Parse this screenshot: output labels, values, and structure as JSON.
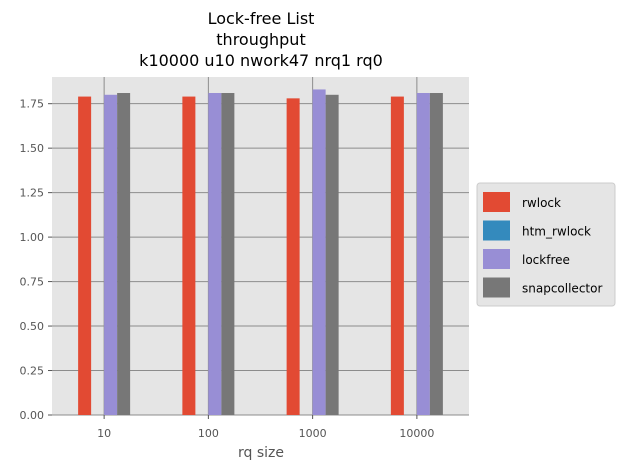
{
  "chart_data": {
    "type": "bar",
    "title": [
      "Lock-free List",
      "throughput",
      "k10000 u10 nwork47 nrq1 rq0"
    ],
    "xlabel": "rq size",
    "ylabel": "",
    "categories": [
      "10",
      "100",
      "1000",
      "10000"
    ],
    "ylim": [
      0,
      1.9
    ],
    "yticks": [
      "0.00",
      "0.25",
      "0.50",
      "0.75",
      "1.00",
      "1.25",
      "1.50",
      "1.75"
    ],
    "grid": true,
    "legend_position": "right",
    "series": [
      {
        "name": "rwlock",
        "color": "#E24A33",
        "values": [
          1.79,
          1.79,
          1.78,
          1.79
        ]
      },
      {
        "name": "htm_rwlock",
        "color": "#348ABD",
        "values": [
          0,
          0,
          0,
          0
        ]
      },
      {
        "name": "lockfree",
        "color": "#988ED5",
        "values": [
          1.8,
          1.81,
          1.83,
          1.81
        ]
      },
      {
        "name": "snapcollector",
        "color": "#777777",
        "values": [
          1.81,
          1.81,
          1.8,
          1.81
        ]
      }
    ]
  }
}
